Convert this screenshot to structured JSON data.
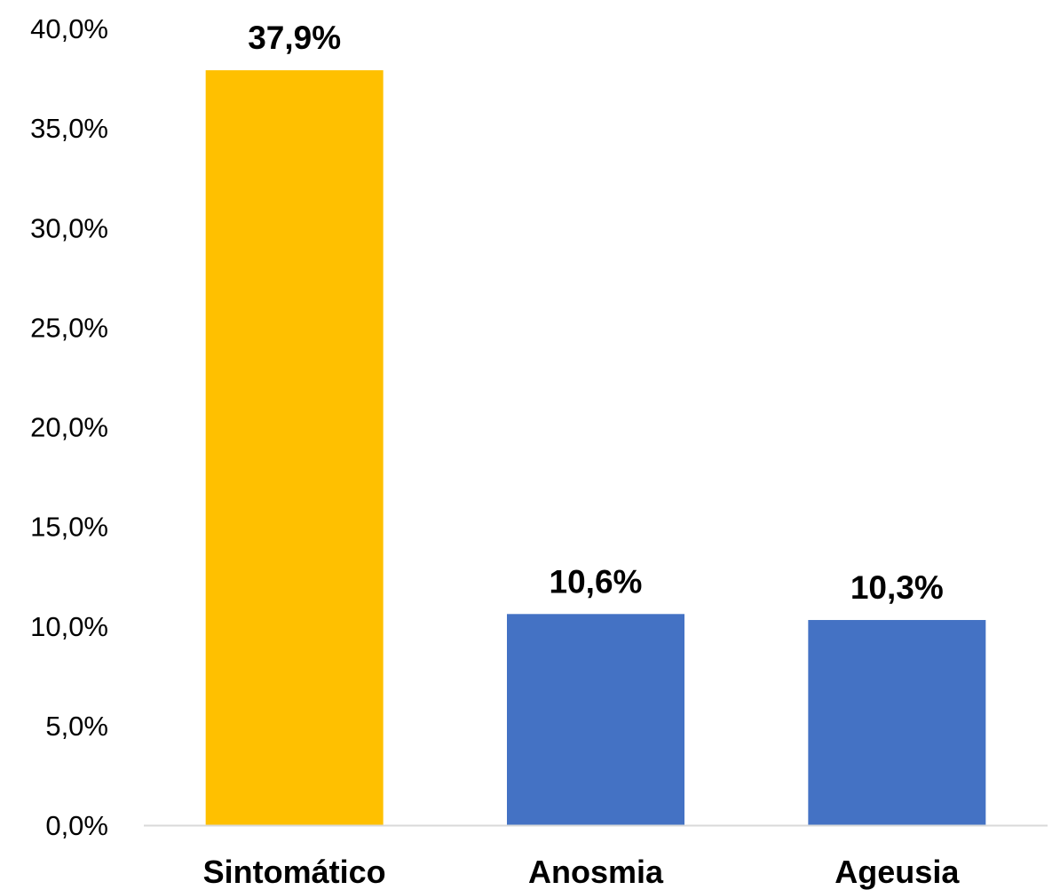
{
  "chart_data": {
    "type": "bar",
    "categories": [
      "Sintomático",
      "Anosmia",
      "Ageusia"
    ],
    "values": [
      37.9,
      10.6,
      10.3
    ],
    "data_labels": [
      "37,9%",
      "10,6%",
      "10,3%"
    ],
    "bar_colors": [
      "#FFC000",
      "#4472C4",
      "#4472C4"
    ],
    "ylim": [
      0,
      40
    ],
    "y_ticks": [
      0,
      5,
      10,
      15,
      20,
      25,
      30,
      35,
      40
    ],
    "y_tick_labels": [
      "0,0%",
      "5,0%",
      "10,0%",
      "15,0%",
      "20,0%",
      "25,0%",
      "30,0%",
      "35,0%",
      "40,0%"
    ],
    "title": "",
    "xlabel": "",
    "ylabel": "",
    "grid": false,
    "legend": "none",
    "axis_line_color": "#D9D9D9"
  }
}
